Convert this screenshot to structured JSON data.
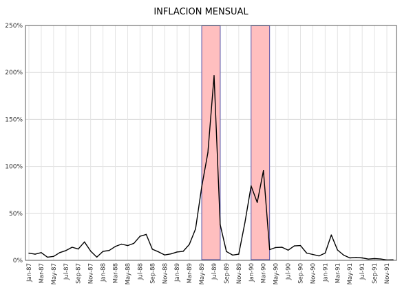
{
  "chart_data": {
    "type": "line",
    "title": "INFLACION MENSUAL",
    "xlabel": "",
    "ylabel": "",
    "ylim": [
      0,
      250
    ],
    "y_tick_values": [
      0,
      50,
      100,
      150,
      200,
      250
    ],
    "y_tick_labels": [
      "0%",
      "50%",
      "100%",
      "150%",
      "200%",
      "250%"
    ],
    "y_unit": "percent",
    "grid": "both",
    "legend": "none",
    "x": [
      "Jan-87",
      "Feb-87",
      "Mar-87",
      "Apr-87",
      "May-87",
      "Jun-87",
      "Jul-87",
      "Aug-87",
      "Sep-87",
      "Oct-87",
      "Nov-87",
      "Dec-87",
      "Jan-88",
      "Feb-88",
      "Mar-88",
      "Apr-88",
      "May-88",
      "Jun-88",
      "Jul-88",
      "Aug-88",
      "Sep-88",
      "Oct-88",
      "Nov-88",
      "Dec-88",
      "Jan-89",
      "Feb-89",
      "Mar-89",
      "Apr-89",
      "May-89",
      "Jun-89",
      "Jul-89",
      "Aug-89",
      "Sep-89",
      "Oct-89",
      "Nov-89",
      "Dec-89",
      "Jan-90",
      "Feb-90",
      "Mar-90",
      "Apr-90",
      "May-90",
      "Jun-90",
      "Jul-90",
      "Aug-90",
      "Sep-90",
      "Oct-90",
      "Nov-90",
      "Dec-90",
      "Jan-91",
      "Feb-91",
      "Mar-91",
      "Apr-91",
      "May-91",
      "Jun-91",
      "Jul-91",
      "Aug-91",
      "Sep-91",
      "Oct-91",
      "Nov-91",
      "Dec-91"
    ],
    "x_tick_labels": [
      "Jan-87",
      "Mar-87",
      "May-87",
      "Jul-87",
      "Sep-87",
      "Nov-87",
      "Jan-88",
      "Mar-88",
      "May-88",
      "Jul-88",
      "Sep-88",
      "Nov-88",
      "Jan-89",
      "Mar-89",
      "May-89",
      "Jul-89",
      "Sep-89",
      "Nov-89",
      "Jan-90",
      "Mar-90",
      "May-90",
      "Jul-90",
      "Sep-90",
      "Nov-90",
      "Jan-91",
      "Mar-91",
      "May-91",
      "Jul-91",
      "Sep-91",
      "Nov-91"
    ],
    "series": [
      {
        "name": "",
        "color": "#000000",
        "values": [
          7.6,
          6.5,
          8.2,
          3.4,
          4.2,
          8.2,
          10.4,
          13.9,
          12.0,
          19.6,
          9.8,
          3.4,
          9.5,
          10.5,
          14.7,
          17.2,
          15.7,
          18.0,
          25.6,
          27.6,
          11.8,
          9.0,
          5.7,
          6.8,
          8.9,
          9.6,
          17.0,
          33.4,
          78.5,
          114.5,
          196.6,
          37.9,
          9.4,
          5.6,
          6.5,
          40.1,
          79.2,
          61.6,
          95.5,
          11.4,
          13.6,
          13.9,
          10.8,
          15.3,
          15.7,
          7.7,
          6.2,
          4.7,
          7.7,
          27.0,
          11.0,
          5.5,
          2.6,
          3.1,
          2.6,
          1.3,
          1.8,
          1.4,
          0.4,
          0.6
        ]
      }
    ],
    "highlight_periods": [
      {
        "from": "May-89",
        "to": "Aug-89",
        "color": "#ffbfbf",
        "border": "#5555aa"
      },
      {
        "from": "Jan-90",
        "to": "Apr-90",
        "color": "#ffbfbf",
        "border": "#5555aa"
      }
    ]
  }
}
